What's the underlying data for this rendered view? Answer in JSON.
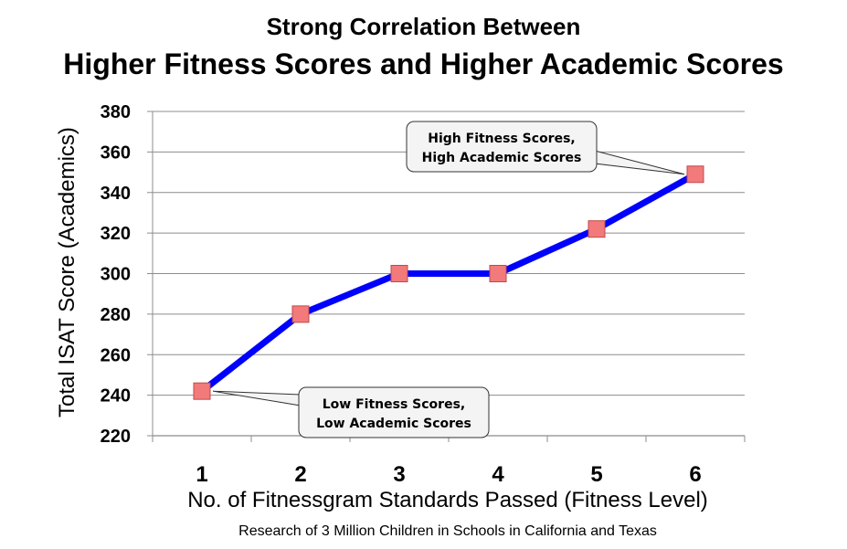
{
  "chart_data": {
    "type": "line",
    "title_line1": "Strong Correlation Between",
    "title_line2": "Higher Fitness Scores and Higher Academic Scores",
    "xlabel": "No. of Fitnessgram Standards Passed (Fitness Level)",
    "ylabel": "Total ISAT Score (Academics)",
    "footnote": "Research of 3 Million Children in Schools in California and Texas",
    "x": [
      1,
      2,
      3,
      4,
      5,
      6
    ],
    "x_tick_labels": [
      "1",
      "2",
      "3",
      "4",
      "5",
      "6"
    ],
    "y_ticks": [
      220,
      240,
      260,
      280,
      300,
      320,
      340,
      360,
      380
    ],
    "ylim": [
      220,
      380
    ],
    "grid": "horizontal",
    "legend": "none",
    "series": [
      {
        "values": [
          242,
          280,
          300,
          300,
          322,
          349
        ],
        "line_color": "#0000ff",
        "marker_color": "#f27a7a"
      }
    ],
    "annotations": [
      {
        "line1": "High Fitness Scores,",
        "line2": "High Academic Scores",
        "target_index": 5
      },
      {
        "line1": "Low Fitness Scores,",
        "line2": "Low Academic Scores",
        "target_index": 0
      }
    ]
  }
}
